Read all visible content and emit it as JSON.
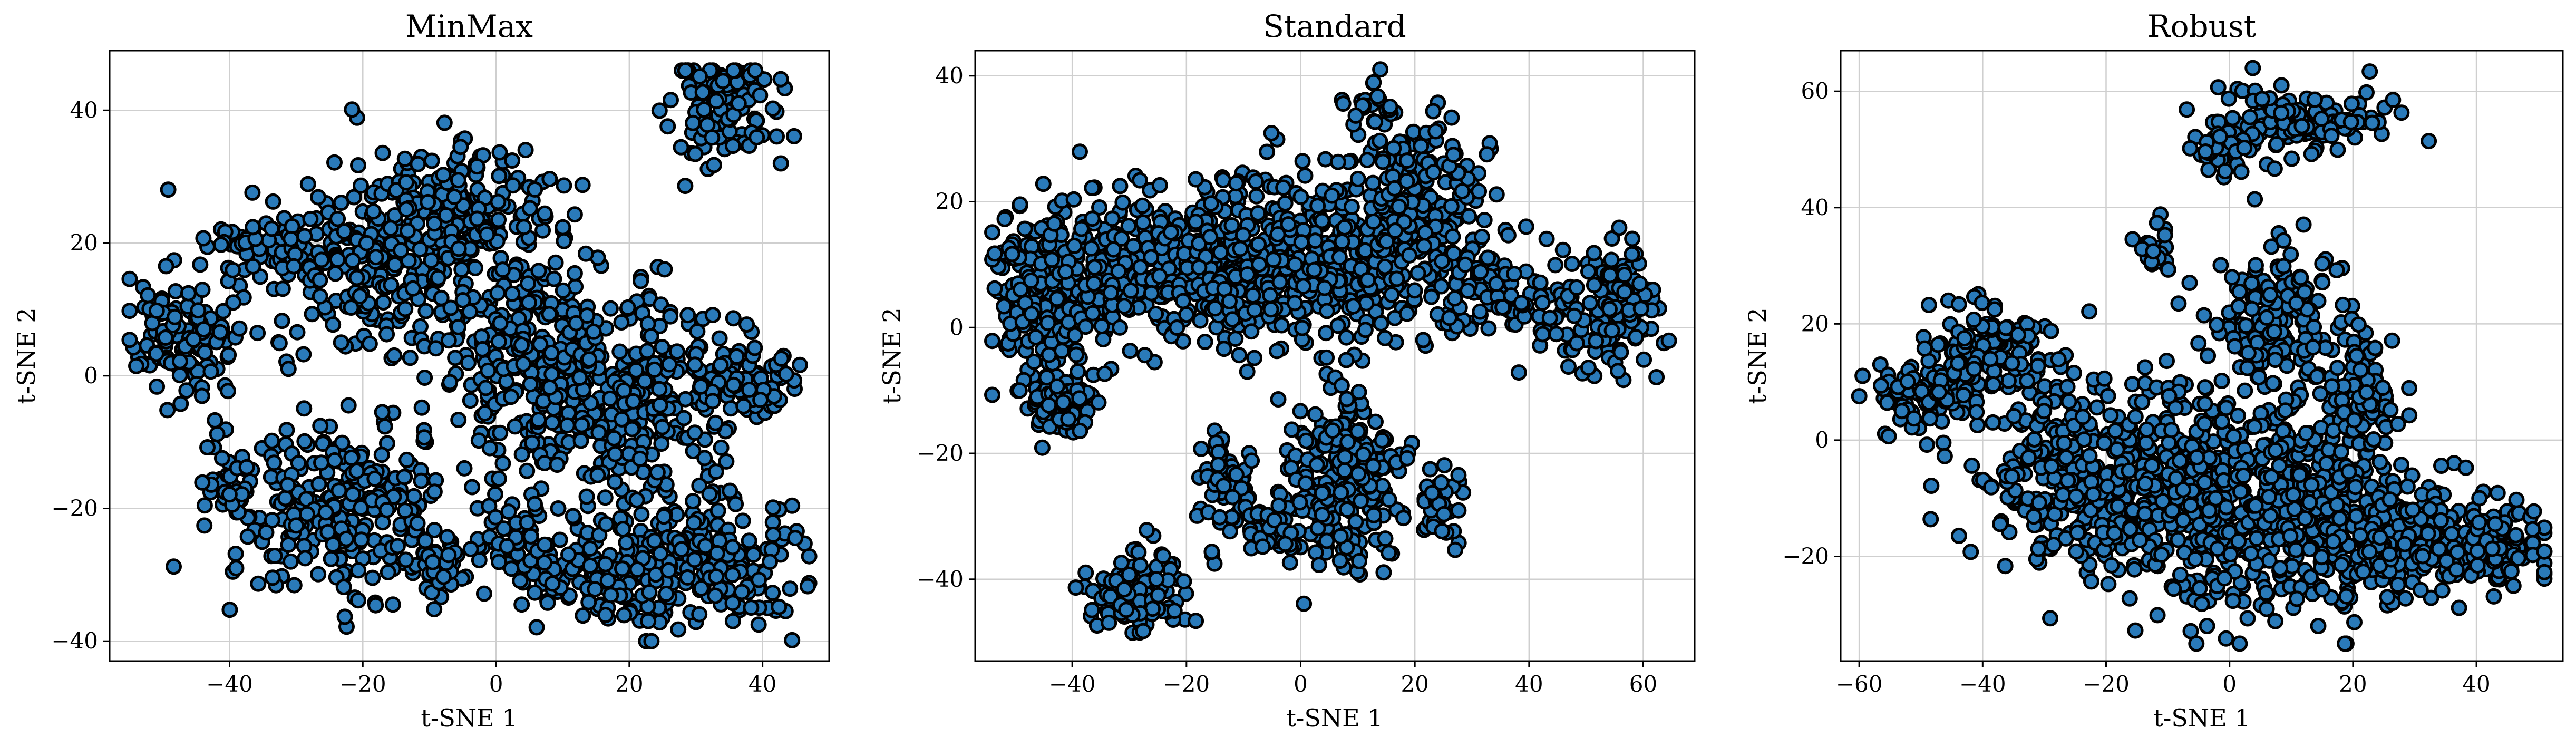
{
  "figure": {
    "colors": {
      "marker_fill": "#2a7ab9",
      "marker_edge": "#000000",
      "grid": "#cfcfcf"
    }
  },
  "chart_data": [
    {
      "type": "scatter",
      "title": "MinMax",
      "xlabel": "t-SNE 1",
      "ylabel": "t-SNE 2",
      "xlim": [
        -58,
        50
      ],
      "ylim": [
        -43,
        49
      ],
      "xticks": [
        -40,
        -20,
        0,
        20,
        40
      ],
      "yticks": [
        -40,
        -20,
        0,
        20,
        40
      ],
      "grid": true,
      "n_points": 2000,
      "seed": 11,
      "clusters": [
        {
          "cx": 34,
          "cy": 40,
          "sx": 4,
          "sy": 4,
          "w": 0.05
        },
        {
          "cx": -47,
          "cy": 6,
          "sx": 4,
          "sy": 5,
          "w": 0.06
        },
        {
          "cx": -35,
          "cy": 20,
          "sx": 4,
          "sy": 2,
          "w": 0.02
        },
        {
          "cx": -18,
          "cy": 18,
          "sx": 9,
          "sy": 7,
          "w": 0.12
        },
        {
          "cx": -5,
          "cy": 26,
          "sx": 6,
          "sy": 5,
          "w": 0.07
        },
        {
          "cx": 5,
          "cy": 5,
          "sx": 8,
          "sy": 8,
          "w": 0.12
        },
        {
          "cx": 20,
          "cy": -5,
          "sx": 9,
          "sy": 9,
          "w": 0.14
        },
        {
          "cx": 36,
          "cy": -1,
          "sx": 5,
          "sy": 3,
          "w": 0.04
        },
        {
          "cx": -22,
          "cy": -20,
          "sx": 8,
          "sy": 7,
          "w": 0.12
        },
        {
          "cx": 30,
          "cy": -28,
          "sx": 7,
          "sy": 5,
          "w": 0.1
        },
        {
          "cx": 15,
          "cy": -30,
          "sx": 6,
          "sy": 4,
          "w": 0.05
        },
        {
          "cx": -40,
          "cy": -17,
          "sx": 2,
          "sy": 3,
          "w": 0.02
        },
        {
          "cx": -8,
          "cy": -28,
          "sx": 3,
          "sy": 3,
          "w": 0.02
        },
        {
          "cx": 3,
          "cy": -24,
          "sx": 3,
          "sy": 3,
          "w": 0.02
        }
      ]
    },
    {
      "type": "scatter",
      "title": "Standard",
      "xlabel": "t-SNE 1",
      "ylabel": "t-SNE 2",
      "xlim": [
        -57,
        69
      ],
      "ylim": [
        -53,
        44
      ],
      "xticks": [
        -40,
        -20,
        0,
        20,
        40,
        60
      ],
      "yticks": [
        -40,
        -20,
        0,
        20,
        40
      ],
      "grid": true,
      "n_points": 2000,
      "seed": 23,
      "clusters": [
        {
          "cx": -45,
          "cy": 5,
          "sx": 5,
          "sy": 7,
          "w": 0.1
        },
        {
          "cx": -30,
          "cy": 10,
          "sx": 6,
          "sy": 6,
          "w": 0.1
        },
        {
          "cx": -12,
          "cy": 10,
          "sx": 7,
          "sy": 6,
          "w": 0.12
        },
        {
          "cx": 5,
          "cy": 10,
          "sx": 8,
          "sy": 7,
          "w": 0.13
        },
        {
          "cx": 20,
          "cy": 18,
          "sx": 7,
          "sy": 8,
          "w": 0.12
        },
        {
          "cx": 35,
          "cy": 5,
          "sx": 5,
          "sy": 4,
          "w": 0.04
        },
        {
          "cx": 53,
          "cy": 3,
          "sx": 5,
          "sy": 5,
          "w": 0.07
        },
        {
          "cx": -42,
          "cy": -12,
          "sx": 3,
          "sy": 3,
          "w": 0.04
        },
        {
          "cx": 8,
          "cy": -25,
          "sx": 5,
          "sy": 7,
          "w": 0.12
        },
        {
          "cx": -28,
          "cy": -42,
          "sx": 4,
          "sy": 3,
          "w": 0.06
        },
        {
          "cx": -13,
          "cy": -25,
          "sx": 3,
          "sy": 4,
          "w": 0.03
        },
        {
          "cx": -5,
          "cy": -32,
          "sx": 3,
          "sy": 2,
          "w": 0.02
        },
        {
          "cx": 24,
          "cy": -28,
          "sx": 2,
          "sy": 3,
          "w": 0.02
        },
        {
          "cx": 12,
          "cy": 36,
          "sx": 2,
          "sy": 2,
          "w": 0.01
        }
      ]
    },
    {
      "type": "scatter",
      "title": "Robust",
      "xlabel": "t-SNE 1",
      "ylabel": "t-SNE 2",
      "xlim": [
        -63,
        54
      ],
      "ylim": [
        -38,
        67
      ],
      "xticks": [
        -60,
        -40,
        -20,
        0,
        20,
        40
      ],
      "yticks": [
        -20,
        0,
        20,
        40,
        60
      ],
      "grid": true,
      "n_points": 2000,
      "seed": 37,
      "clusters": [
        {
          "cx": 12,
          "cy": 55,
          "sx": 7,
          "sy": 3,
          "w": 0.06
        },
        {
          "cx": -1,
          "cy": 50,
          "sx": 2,
          "sy": 2,
          "w": 0.02
        },
        {
          "cx": -12,
          "cy": 33,
          "sx": 1.5,
          "sy": 2,
          "w": 0.01
        },
        {
          "cx": 8,
          "cy": 20,
          "sx": 5,
          "sy": 7,
          "w": 0.08
        },
        {
          "cx": -50,
          "cy": 8,
          "sx": 4,
          "sy": 3,
          "w": 0.04
        },
        {
          "cx": -38,
          "cy": 15,
          "sx": 5,
          "sy": 4,
          "w": 0.06
        },
        {
          "cx": -25,
          "cy": -5,
          "sx": 9,
          "sy": 8,
          "w": 0.15
        },
        {
          "cx": -5,
          "cy": -10,
          "sx": 9,
          "sy": 10,
          "w": 0.18
        },
        {
          "cx": 15,
          "cy": -12,
          "sx": 8,
          "sy": 9,
          "w": 0.16
        },
        {
          "cx": 28,
          "cy": -18,
          "sx": 5,
          "sy": 5,
          "w": 0.07
        },
        {
          "cx": 42,
          "cy": -18,
          "sx": 5,
          "sy": 4,
          "w": 0.07
        },
        {
          "cx": 22,
          "cy": 8,
          "sx": 3,
          "sy": 6,
          "w": 0.04
        }
      ]
    }
  ]
}
